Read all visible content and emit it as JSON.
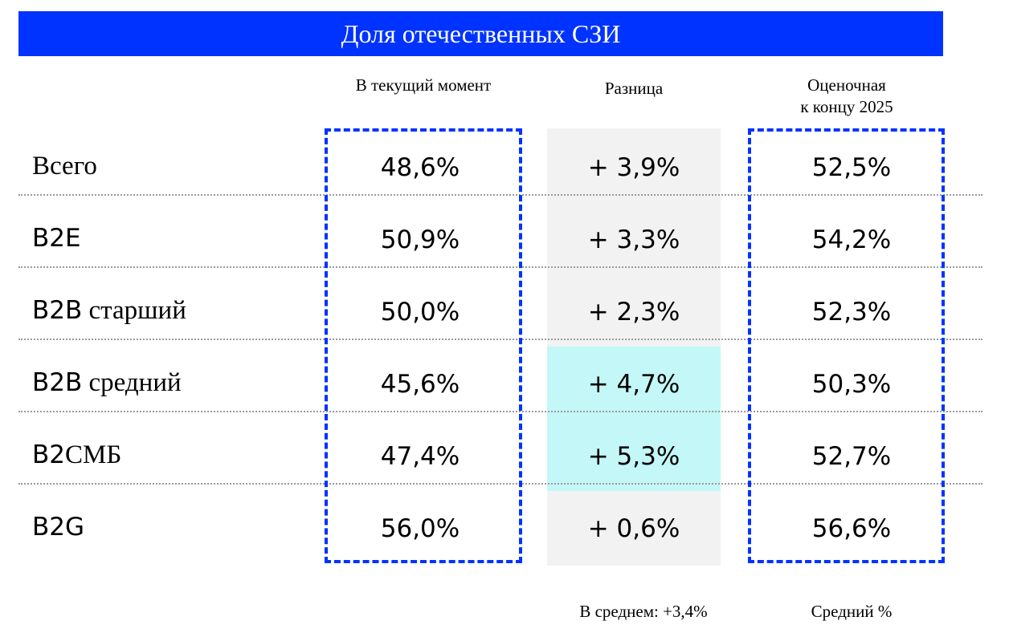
{
  "title": "Доля отечественных СЗИ",
  "colors": {
    "title_bg": "#0033ff",
    "box_border": "#0033ff",
    "shade_gray": "#f2f2f2",
    "shade_cyan": "#c4f7f7"
  },
  "columns": {
    "current": "В текущий момент",
    "diff": "Разница",
    "forecast_line1": "Оценочная",
    "forecast_line2": "к концу 2025"
  },
  "rows": [
    {
      "label_prefix": "",
      "label_rest": "Всего",
      "current": "48,6%",
      "diff": "+ 3,9%",
      "forecast": "52,5%",
      "highlight": false
    },
    {
      "label_prefix": "B2E",
      "label_rest": "",
      "current": "50,9%",
      "diff": "+ 3,3%",
      "forecast": "54,2%",
      "highlight": false
    },
    {
      "label_prefix": "B2B",
      "label_rest": " старший",
      "current": "50,0%",
      "diff": "+ 2,3%",
      "forecast": "52,3%",
      "highlight": false
    },
    {
      "label_prefix": "B2B",
      "label_rest": " средний",
      "current": "45,6%",
      "diff": "+ 4,7%",
      "forecast": "50,3%",
      "highlight": true
    },
    {
      "label_prefix": "B2",
      "label_rest": "СМБ",
      "current": "47,4%",
      "diff": "+ 5,3%",
      "forecast": "52,7%",
      "highlight": true
    },
    {
      "label_prefix": "B2G",
      "label_rest": "",
      "current": "56,0%",
      "diff": "+ 0,6%",
      "forecast": "56,6%",
      "highlight": false
    }
  ],
  "footer": {
    "diff_avg": "В среднем: +3,4%",
    "forecast_avg": "Средний %"
  }
}
